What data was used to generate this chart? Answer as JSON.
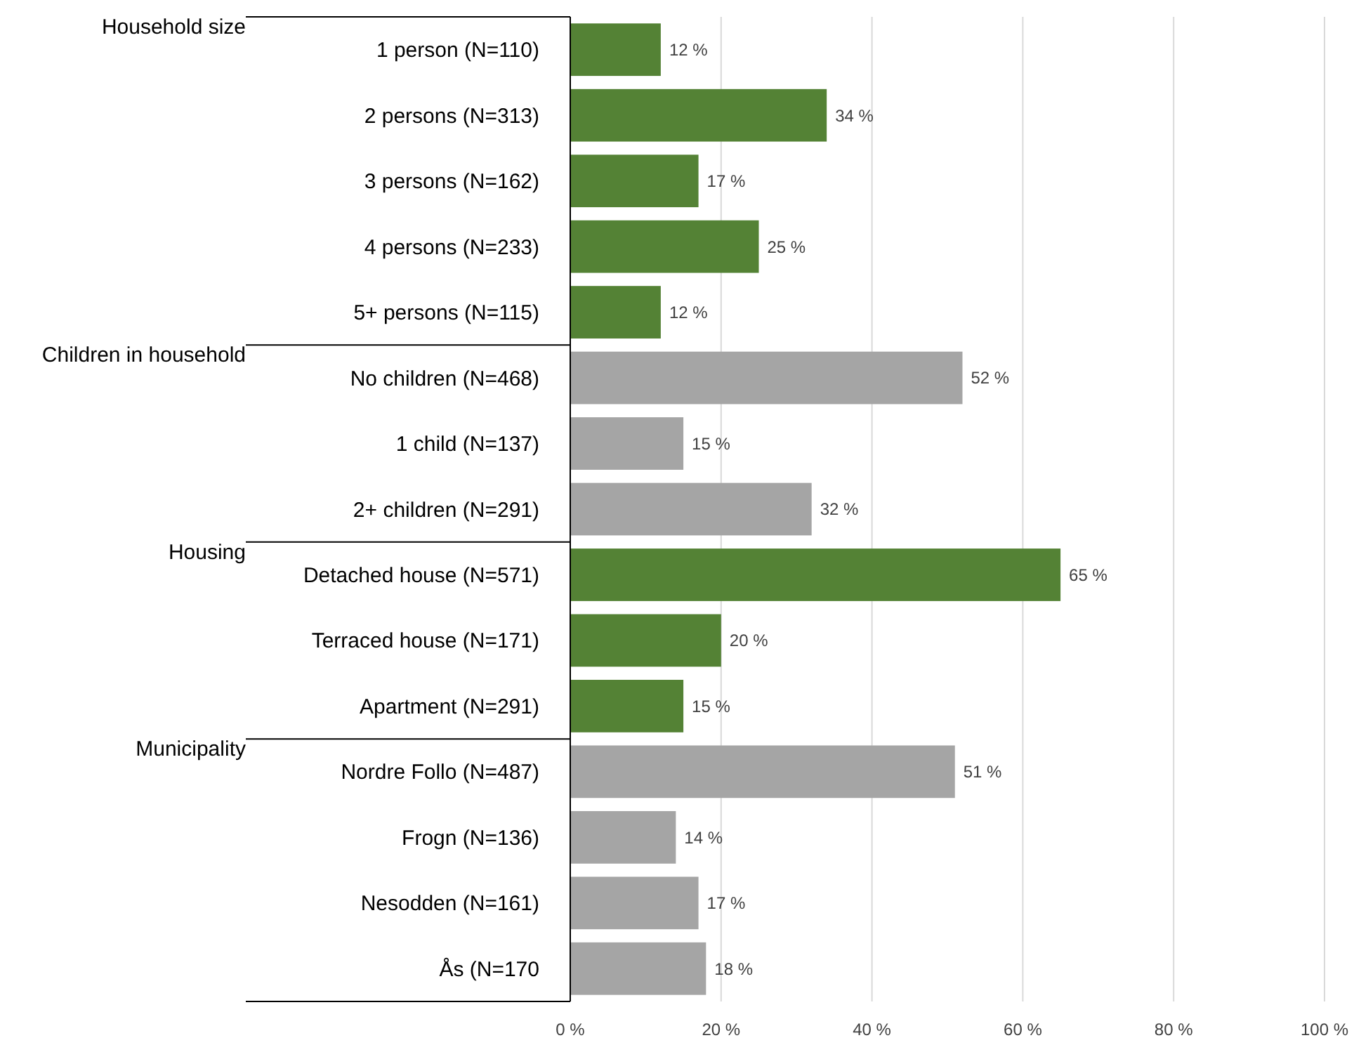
{
  "chart_data": {
    "type": "bar",
    "orientation": "horizontal",
    "categories": [
      "1 person (N=110)",
      "2 persons (N=313)",
      "3 persons (N=162)",
      "4 persons (N=233)",
      "5+ persons (N=115)",
      "No children (N=468)",
      "1 child (N=137)",
      "2+ children (N=291)",
      "Detached house (N=571)",
      "Terraced house (N=171)",
      "Apartment (N=291)",
      "Nordre Follo (N=487)",
      "Frogn (N=136)",
      "Nesodden (N=161)",
      "Ås (N=170"
    ],
    "values": [
      12,
      34,
      17,
      25,
      12,
      52,
      15,
      32,
      65,
      20,
      15,
      51,
      14,
      17,
      18
    ],
    "value_labels": [
      "12 %",
      "34 %",
      "17 %",
      "25 %",
      "12 %",
      "52 %",
      "15 %",
      "32 %",
      "65 %",
      "20 %",
      "15 %",
      "51 %",
      "14 %",
      "17 %",
      "18 %"
    ],
    "colors": [
      "#548235",
      "#548235",
      "#548235",
      "#548235",
      "#548235",
      "#a5a5a5",
      "#a5a5a5",
      "#a5a5a5",
      "#548235",
      "#548235",
      "#548235",
      "#a5a5a5",
      "#a5a5a5",
      "#a5a5a5",
      "#a5a5a5"
    ],
    "xlim": [
      0,
      100
    ],
    "xticks": [
      {
        "value": 0,
        "label": "0 %"
      },
      {
        "value": 20,
        "label": "20 %"
      },
      {
        "value": 40,
        "label": "40 %"
      },
      {
        "value": 60,
        "label": "60 %"
      },
      {
        "value": 80,
        "label": "80 %"
      },
      {
        "value": 100,
        "label": "100 %"
      }
    ],
    "grid": "x",
    "annotations": [
      "Household size",
      "Children in household",
      "Housing",
      "Municipality"
    ]
  }
}
